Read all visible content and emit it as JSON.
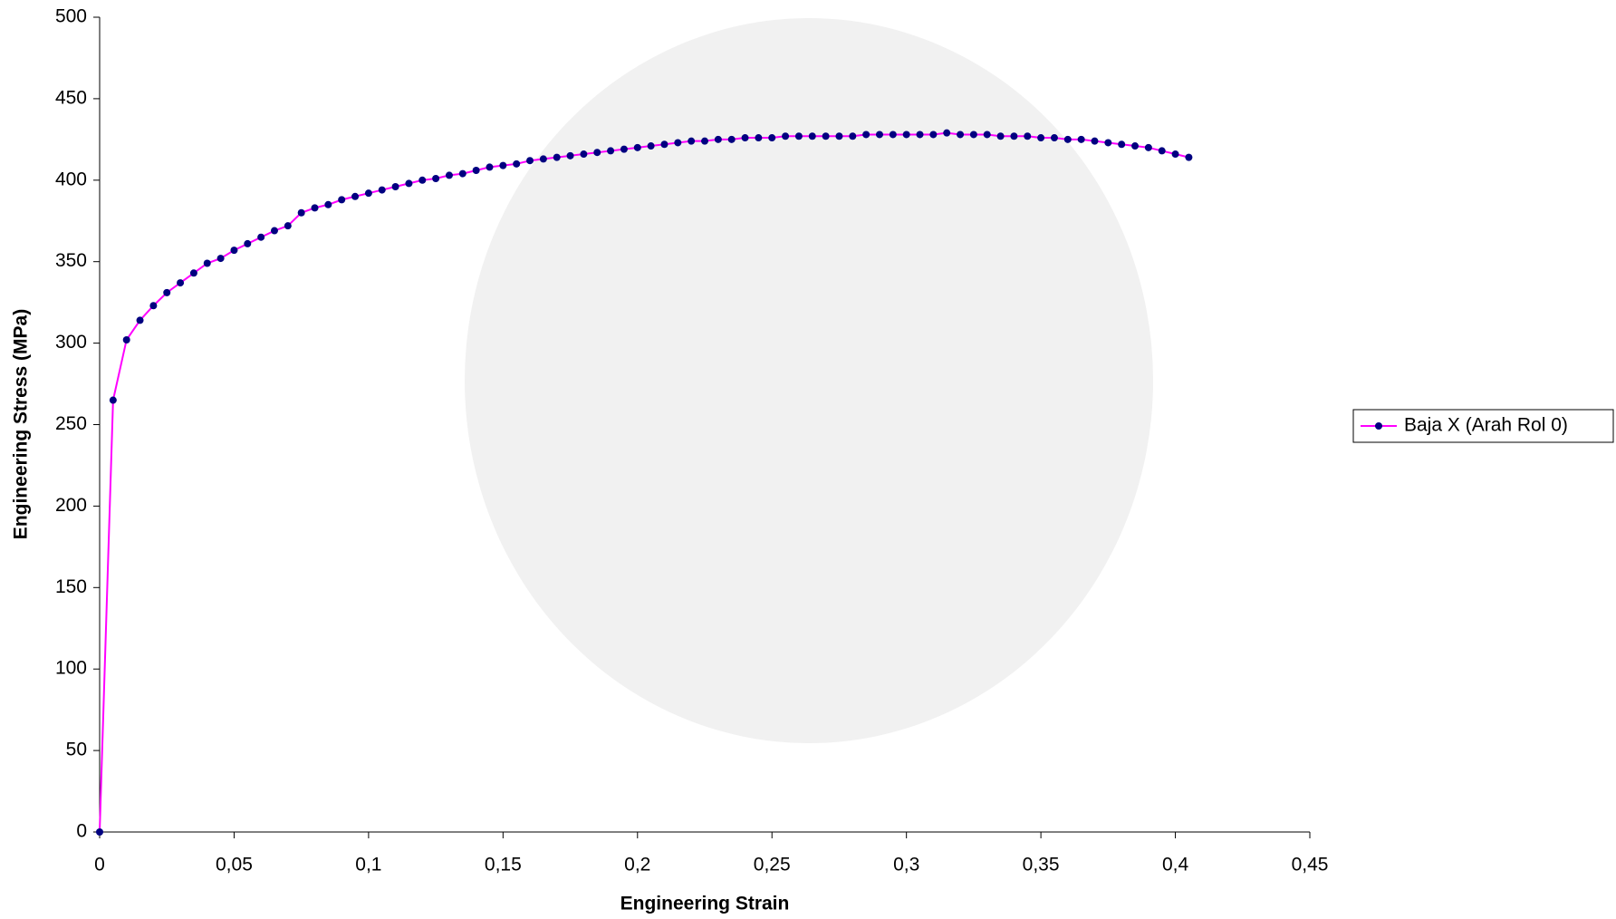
{
  "chart_data": {
    "type": "line",
    "x_label": "Engineering Strain",
    "y_label": "Engineering Stress (MPa)",
    "x": [
      0,
      0.005,
      0.01,
      0.015,
      0.02,
      0.025,
      0.03,
      0.035,
      0.04,
      0.045,
      0.05,
      0.055,
      0.06,
      0.065,
      0.07,
      0.075,
      0.08,
      0.085,
      0.09,
      0.095,
      0.1,
      0.105,
      0.11,
      0.115,
      0.12,
      0.125,
      0.13,
      0.135,
      0.14,
      0.145,
      0.15,
      0.155,
      0.16,
      0.165,
      0.17,
      0.175,
      0.18,
      0.185,
      0.19,
      0.195,
      0.2,
      0.205,
      0.21,
      0.215,
      0.22,
      0.225,
      0.23,
      0.235,
      0.24,
      0.245,
      0.25,
      0.255,
      0.26,
      0.265,
      0.27,
      0.275,
      0.28,
      0.285,
      0.29,
      0.295,
      0.3,
      0.305,
      0.31,
      0.315,
      0.32,
      0.325,
      0.33,
      0.335,
      0.34,
      0.345,
      0.35,
      0.355,
      0.36,
      0.365,
      0.37,
      0.375,
      0.38,
      0.385,
      0.39,
      0.395,
      0.4,
      0.405
    ],
    "series": [
      {
        "name": "Baja X (Arah Rol 0)",
        "color": "#ff00ff",
        "marker_color": "#000080",
        "values": [
          0,
          265,
          302,
          314,
          323,
          331,
          337,
          343,
          349,
          352,
          357,
          361,
          365,
          369,
          372,
          380,
          383,
          385,
          388,
          390,
          392,
          394,
          396,
          398,
          400,
          401,
          403,
          404,
          406,
          408,
          409,
          410,
          412,
          413,
          414,
          415,
          416,
          417,
          418,
          419,
          420,
          421,
          422,
          423,
          424,
          424,
          425,
          425,
          426,
          426,
          426,
          427,
          427,
          427,
          427,
          427,
          427,
          428,
          428,
          428,
          428,
          428,
          428,
          429,
          428,
          428,
          428,
          427,
          427,
          427,
          426,
          426,
          425,
          425,
          424,
          423,
          422,
          421,
          420,
          418,
          416,
          414
        ]
      }
    ],
    "xlim": [
      0,
      0.45
    ],
    "xticks": [
      0,
      {
        "value": 0.05,
        "label": "0,05"
      },
      {
        "value": 0.1,
        "label": "0,1"
      },
      {
        "value": 0.15,
        "label": "0,15"
      },
      {
        "value": 0.2,
        "label": "0,2"
      },
      {
        "value": 0.25,
        "label": "0,25"
      },
      {
        "value": 0.3,
        "label": "0,3"
      },
      {
        "value": 0.35,
        "label": "0,35"
      },
      {
        "value": 0.4,
        "label": "0,4"
      },
      {
        "value": 0.45,
        "label": "0,45"
      }
    ],
    "ylim": [
      0,
      500
    ],
    "yticks": [
      0,
      50,
      100,
      150,
      200,
      250,
      300,
      350,
      400,
      450,
      500
    ],
    "grid": false,
    "legend": "right"
  }
}
